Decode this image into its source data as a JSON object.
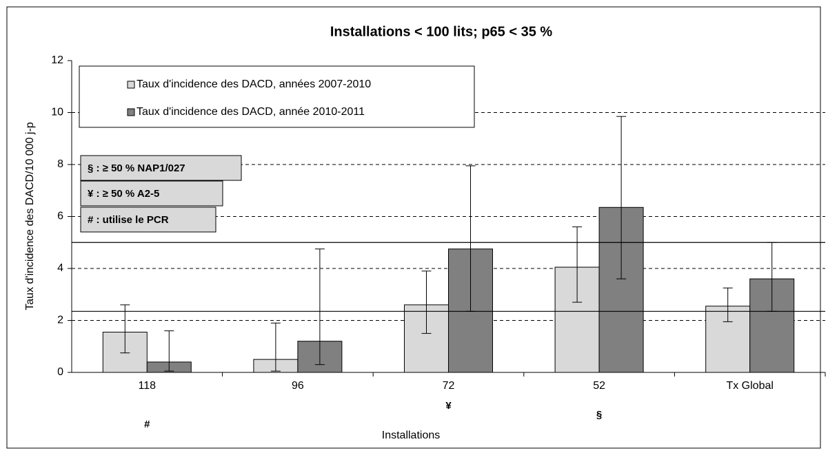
{
  "chart_data": {
    "type": "bar",
    "title": "Installations < 100 lits; p65 < 35 %",
    "x_label": "Installations",
    "y_label": "Taux d'incidence des DACD/10 000 j-p",
    "categories": [
      "118",
      "96",
      "72",
      "52",
      "Tx Global"
    ],
    "series": [
      {
        "name": "Taux d'incidence des DACD, années 2007-2010",
        "color": "#d9d9d9",
        "values": [
          1.55,
          0.5,
          2.6,
          4.05,
          2.55
        ],
        "lower": [
          0.75,
          0.05,
          1.5,
          2.7,
          1.95
        ],
        "upper": [
          2.6,
          1.9,
          3.9,
          5.6,
          3.25
        ]
      },
      {
        "name": "Taux d'incidence des DACD, année 2010-2011",
        "color": "#808080",
        "values": [
          0.4,
          1.2,
          4.75,
          6.35,
          3.6
        ],
        "lower": [
          0.05,
          0.3,
          2.35,
          3.6,
          2.35
        ],
        "upper": [
          1.6,
          4.75,
          7.95,
          9.85,
          5.0
        ]
      }
    ],
    "reference_lines": [
      5.0,
      2.35
    ],
    "ylim": [
      0,
      12
    ],
    "yticks": [
      0,
      2,
      4,
      6,
      8,
      10,
      12
    ],
    "grid": true,
    "notes": [
      "§ : ≥ 50 % NAP1/027",
      "¥ : ≥ 50 % A2-5",
      "# : utilise le PCR"
    ],
    "category_marks": [
      {
        "category": "118",
        "text": "#"
      },
      {
        "category": "72",
        "text": "¥"
      },
      {
        "category": "52",
        "text": "§"
      }
    ]
  }
}
